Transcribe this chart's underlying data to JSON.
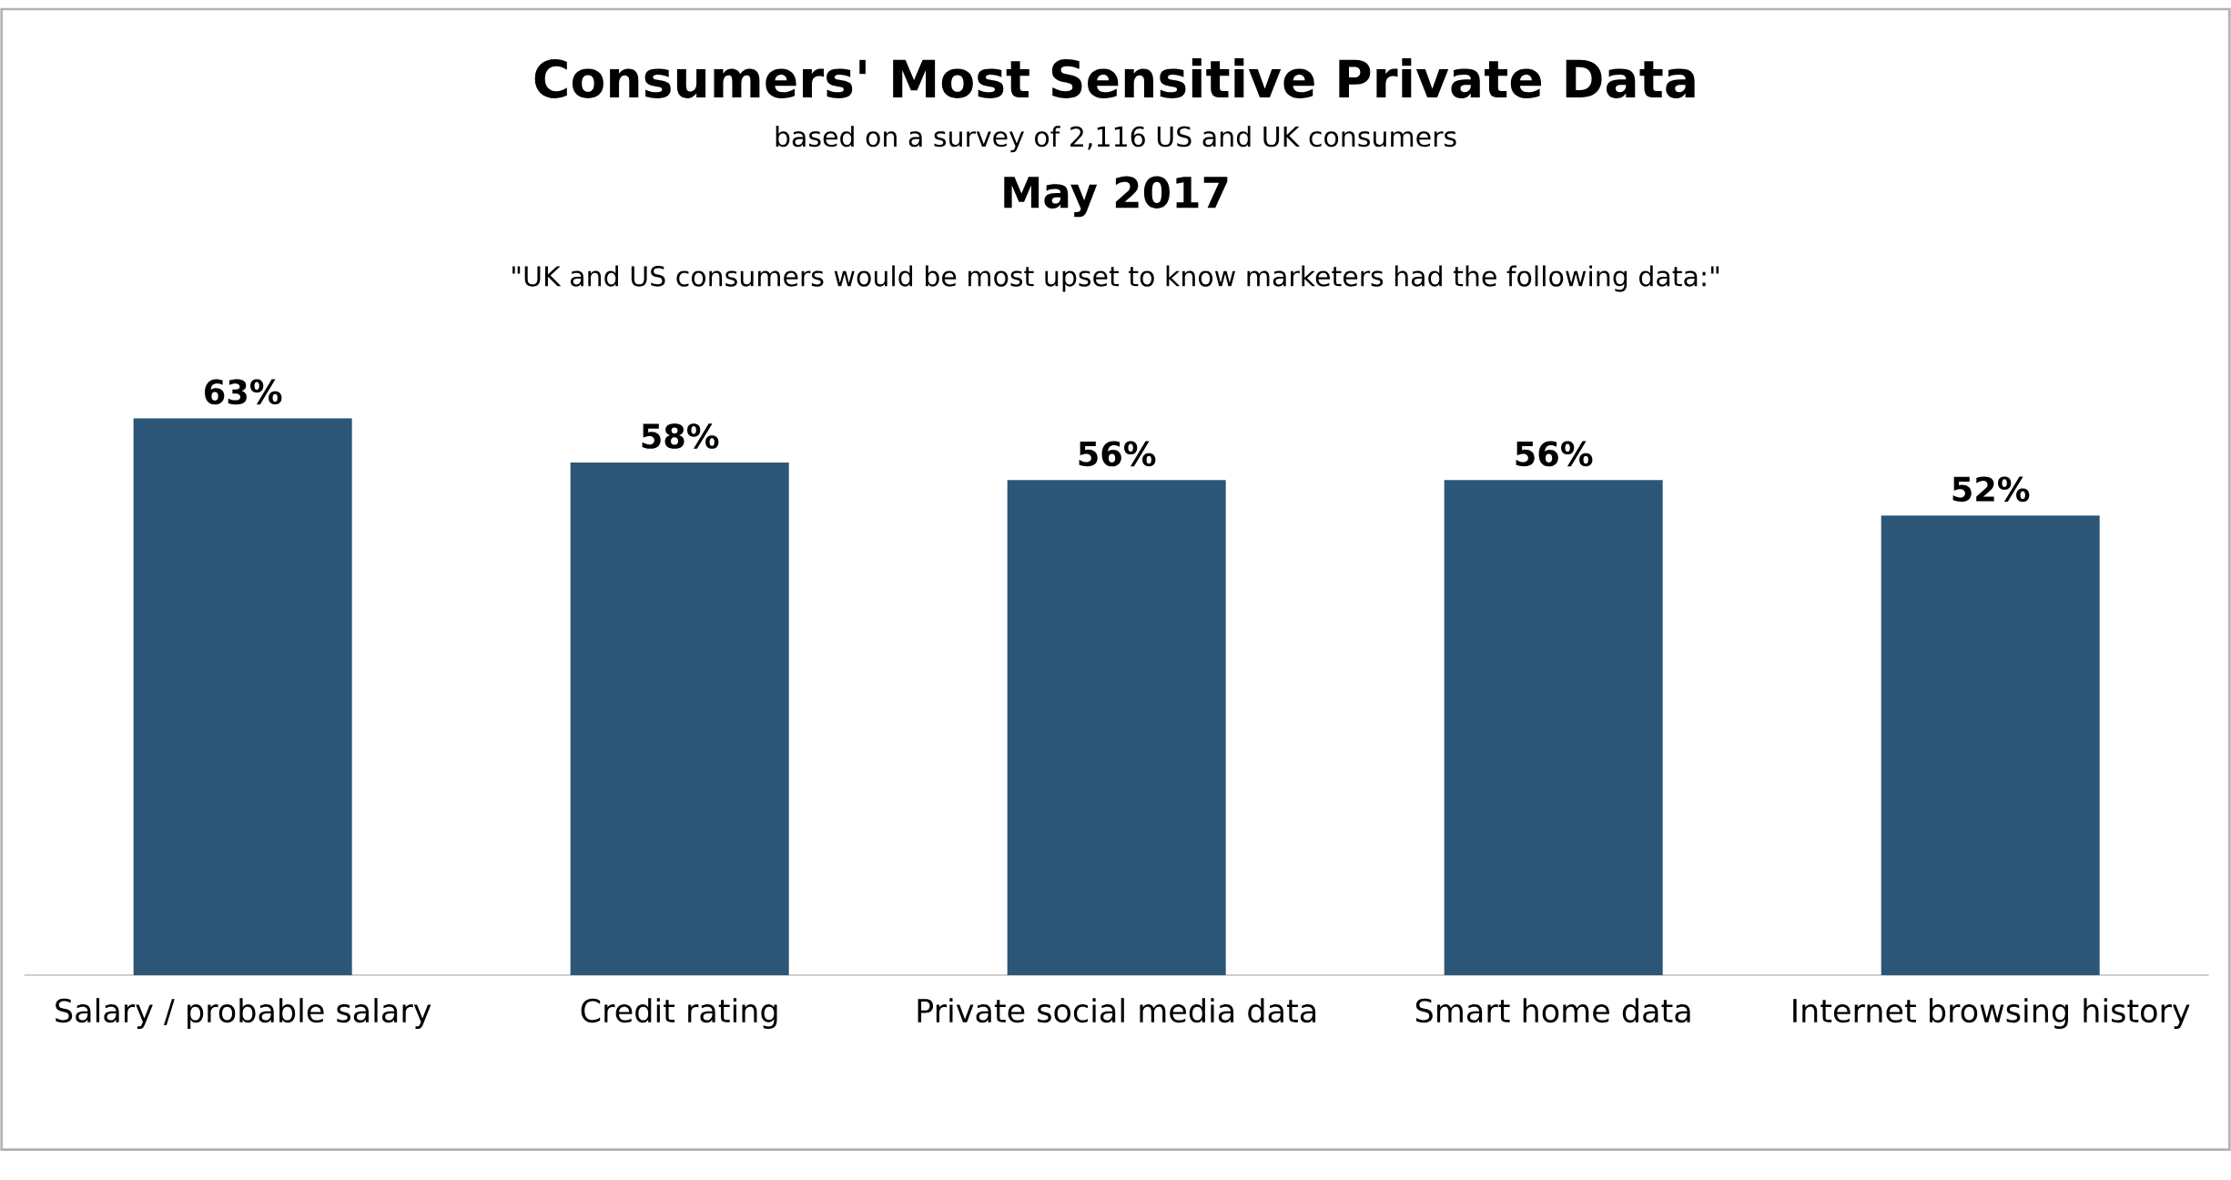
{
  "chart_data": {
    "type": "bar",
    "title": "Consumers' Most Sensitive Private Data",
    "subtitle": "based on a survey of 2,116 US and UK consumers",
    "annotations": [
      "May 2017",
      "\"UK and US consumers would be most upset to know marketers had the following data:\""
    ],
    "categories": [
      "Salary / probable salary",
      "Credit rating",
      "Private social media data",
      "Smart home data",
      "Internet browsing history"
    ],
    "values": [
      63,
      58,
      56,
      56,
      52
    ],
    "value_labels": [
      "63%",
      "58%",
      "56%",
      "56%",
      "52%"
    ],
    "color": "#2c5677"
  }
}
